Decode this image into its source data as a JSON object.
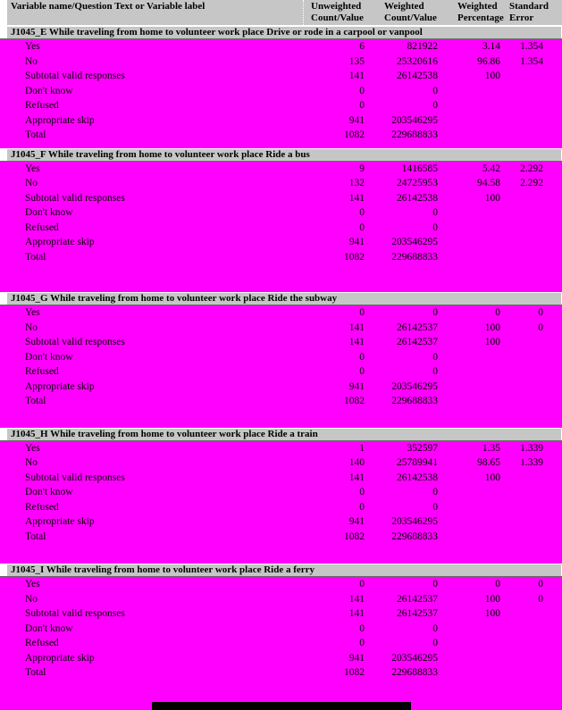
{
  "page": {
    "background_color": "#ff00ff",
    "header_bg_color": "#c6c6c6",
    "text_color": "#000000"
  },
  "table": {
    "columns": [
      "Variable name/Question Text or Variable label",
      "Unweighted\nCount/Value",
      "Weighted\nCount/Value",
      "Weighted\nPercentage",
      "Standard\nError"
    ],
    "sections": [
      {
        "id": "J1045_E",
        "header": "J1045_E While traveling from home to volunteer work place Drive or rode in a carpool or vanpool",
        "rows": [
          [
            "Yes",
            "6",
            "821922",
            "3.14",
            "1.354"
          ],
          [
            "No",
            "135",
            "25320616",
            "96.86",
            "1.354"
          ],
          [
            "Subtotal valid responses",
            "141",
            "26142538",
            "100",
            ""
          ],
          [
            "Don't know",
            "0",
            "0",
            "",
            ""
          ],
          [
            "Refused",
            "0",
            "0",
            "",
            ""
          ],
          [
            "Appropriate skip",
            "941",
            "203546295",
            "",
            ""
          ],
          [
            "Total",
            "1082",
            "229688833",
            "",
            ""
          ]
        ]
      },
      {
        "id": "J1045_F",
        "header": "J1045_F While traveling from home to volunteer work place Ride a bus",
        "rows": [
          [
            "Yes",
            "9",
            "1416585",
            "5.42",
            "2.292"
          ],
          [
            "No",
            "132",
            "24725953",
            "94.58",
            "2.292"
          ],
          [
            "Subtotal valid responses",
            "141",
            "26142538",
            "100",
            ""
          ],
          [
            "Don't know",
            "0",
            "0",
            "",
            ""
          ],
          [
            "Refused",
            "0",
            "0",
            "",
            ""
          ],
          [
            "Appropriate skip",
            "941",
            "203546295",
            "",
            ""
          ],
          [
            "Total",
            "1082",
            "229688833",
            "",
            ""
          ]
        ]
      },
      {
        "id": "J1045_G",
        "header": "J1045_G While traveling from home to volunteer work place Ride the subway",
        "rows": [
          [
            "Yes",
            "0",
            "0",
            "0",
            "0"
          ],
          [
            "No",
            "141",
            "26142537",
            "100",
            "0"
          ],
          [
            "Subtotal valid responses",
            "141",
            "26142537",
            "100",
            ""
          ],
          [
            "Don't know",
            "0",
            "0",
            "",
            ""
          ],
          [
            "Refused",
            "0",
            "0",
            "",
            ""
          ],
          [
            "Appropriate skip",
            "941",
            "203546295",
            "",
            ""
          ],
          [
            "Total",
            "1082",
            "229688833",
            "",
            ""
          ]
        ]
      },
      {
        "id": "J1045_H",
        "header": "J1045_H While traveling from home to volunteer work place Ride a train",
        "rows": [
          [
            "Yes",
            "1",
            "352597",
            "1.35",
            "1.339"
          ],
          [
            "No",
            "140",
            "25789941",
            "98.65",
            "1.339"
          ],
          [
            "Subtotal valid responses",
            "141",
            "26142538",
            "100",
            ""
          ],
          [
            "Don't know",
            "0",
            "0",
            "",
            ""
          ],
          [
            "Refused",
            "0",
            "0",
            "",
            ""
          ],
          [
            "Appropriate skip",
            "941",
            "203546295",
            "",
            ""
          ],
          [
            "Total",
            "1082",
            "229688833",
            "",
            ""
          ]
        ]
      },
      {
        "id": "J1045_I",
        "header": "J1045_I While traveling from home to volunteer work place Ride a ferry",
        "rows": [
          [
            "Yes",
            "0",
            "0",
            "0",
            "0"
          ],
          [
            "No",
            "141",
            "26142537",
            "100",
            "0"
          ],
          [
            "Subtotal valid responses",
            "141",
            "26142537",
            "100",
            ""
          ],
          [
            "Don't know",
            "0",
            "0",
            "",
            ""
          ],
          [
            "Refused",
            "0",
            "0",
            "",
            ""
          ],
          [
            "Appropriate skip",
            "941",
            "203546295",
            "",
            ""
          ],
          [
            "Total",
            "1082",
            "229688833",
            "",
            ""
          ]
        ]
      }
    ]
  }
}
